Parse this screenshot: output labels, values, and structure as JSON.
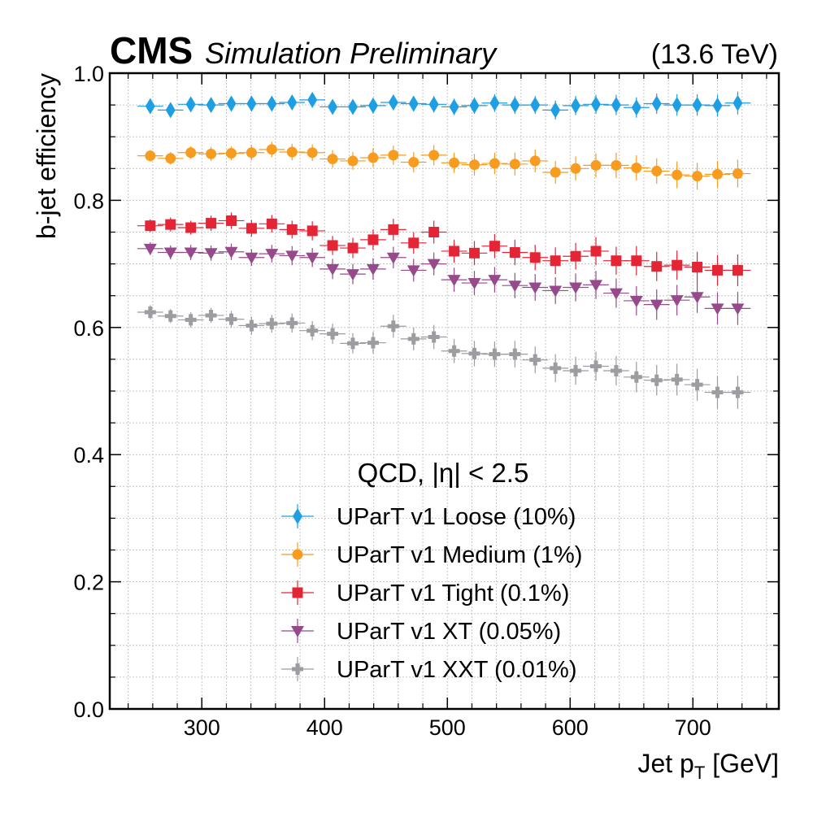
{
  "header": {
    "experiment": "CMS",
    "status": "Simulation Preliminary",
    "energy": "(13.6 TeV)"
  },
  "chart_data": {
    "type": "scatter",
    "xlabel_main": "Jet p",
    "xlabel_sub": "T",
    "xlabel_unit": " [GeV]",
    "ylabel": "b-jet efficiency",
    "xlim": [
      225,
      770
    ],
    "ylim": [
      0,
      1
    ],
    "x_ticks": [
      300,
      400,
      500,
      600,
      700
    ],
    "x_tick_labels": [
      "300",
      "400",
      "500",
      "600",
      "700"
    ],
    "y_ticks": [
      0,
      0.2,
      0.4,
      0.6,
      0.8,
      1.0
    ],
    "y_tick_labels": [
      "0.0",
      "0.2",
      "0.4",
      "0.6",
      "0.8",
      "1.0"
    ],
    "grid": true,
    "legend_title": "QCD, |η| < 2.5",
    "legend_position": "bottom-center",
    "bin_halfwidth": 10.5,
    "x": [
      258,
      274.5,
      291,
      307.5,
      324,
      340.5,
      357,
      373.5,
      390,
      406.5,
      423,
      439.5,
      456,
      472.5,
      489,
      505.5,
      522,
      538.5,
      555,
      571.5,
      588,
      604.5,
      621,
      637.5,
      654,
      670.5,
      687,
      703.5,
      720,
      736.5
    ],
    "series": [
      {
        "name": "UParT v1 Loose (10%)",
        "color": "#1e9fe3",
        "marker": "diamond",
        "values": [
          0.948,
          0.942,
          0.951,
          0.95,
          0.952,
          0.952,
          0.952,
          0.954,
          0.958,
          0.947,
          0.947,
          0.949,
          0.954,
          0.952,
          0.951,
          0.947,
          0.949,
          0.953,
          0.95,
          0.95,
          0.942,
          0.949,
          0.951,
          0.95,
          0.946,
          0.952,
          0.95,
          0.95,
          0.949,
          0.953
        ],
        "yerr": [
          0.007,
          0.008,
          0.008,
          0.008,
          0.009,
          0.009,
          0.009,
          0.01,
          0.011,
          0.011,
          0.011,
          0.012,
          0.012,
          0.012,
          0.013,
          0.013,
          0.013,
          0.014,
          0.014,
          0.014,
          0.015,
          0.015,
          0.015,
          0.016,
          0.016,
          0.016,
          0.017,
          0.017,
          0.017,
          0.018
        ]
      },
      {
        "name": "UParT v1 Medium (1%)",
        "color": "#f89c20",
        "marker": "circle",
        "values": [
          0.87,
          0.866,
          0.875,
          0.873,
          0.874,
          0.875,
          0.88,
          0.876,
          0.875,
          0.865,
          0.862,
          0.867,
          0.871,
          0.86,
          0.871,
          0.859,
          0.856,
          0.858,
          0.857,
          0.862,
          0.844,
          0.85,
          0.855,
          0.855,
          0.851,
          0.846,
          0.84,
          0.838,
          0.841,
          0.842
        ],
        "yerr": [
          0.009,
          0.01,
          0.01,
          0.011,
          0.011,
          0.012,
          0.012,
          0.013,
          0.013,
          0.014,
          0.014,
          0.015,
          0.015,
          0.016,
          0.016,
          0.016,
          0.017,
          0.017,
          0.018,
          0.018,
          0.018,
          0.019,
          0.019,
          0.02,
          0.02,
          0.02,
          0.021,
          0.021,
          0.021,
          0.022
        ]
      },
      {
        "name": "UParT v1 Tight (0.1%)",
        "color": "#e42536",
        "marker": "square",
        "values": [
          0.76,
          0.762,
          0.757,
          0.764,
          0.768,
          0.756,
          0.763,
          0.754,
          0.752,
          0.729,
          0.725,
          0.738,
          0.754,
          0.733,
          0.75,
          0.72,
          0.717,
          0.728,
          0.718,
          0.71,
          0.705,
          0.712,
          0.72,
          0.705,
          0.705,
          0.696,
          0.698,
          0.695,
          0.69,
          0.69
        ],
        "yerr": [
          0.01,
          0.011,
          0.011,
          0.012,
          0.013,
          0.013,
          0.014,
          0.014,
          0.015,
          0.015,
          0.016,
          0.016,
          0.017,
          0.017,
          0.018,
          0.018,
          0.019,
          0.019,
          0.02,
          0.02,
          0.021,
          0.021,
          0.022,
          0.022,
          0.023,
          0.023,
          0.023,
          0.024,
          0.024,
          0.025
        ]
      },
      {
        "name": "UParT v1 XT (0.05%)",
        "color": "#964a8b",
        "marker": "triangle-down",
        "values": [
          0.724,
          0.718,
          0.718,
          0.717,
          0.719,
          0.71,
          0.716,
          0.713,
          0.71,
          0.692,
          0.684,
          0.692,
          0.71,
          0.69,
          0.7,
          0.675,
          0.67,
          0.675,
          0.666,
          0.663,
          0.658,
          0.663,
          0.667,
          0.654,
          0.642,
          0.636,
          0.643,
          0.648,
          0.63,
          0.63
        ],
        "yerr": [
          0.01,
          0.011,
          0.012,
          0.012,
          0.013,
          0.013,
          0.014,
          0.015,
          0.015,
          0.016,
          0.016,
          0.017,
          0.017,
          0.018,
          0.018,
          0.019,
          0.019,
          0.02,
          0.02,
          0.021,
          0.021,
          0.022,
          0.022,
          0.023,
          0.023,
          0.024,
          0.024,
          0.025,
          0.025,
          0.026
        ]
      },
      {
        "name": "UParT v1 XXT (0.01%)",
        "color": "#9c9ca1",
        "marker": "plus",
        "values": [
          0.624,
          0.618,
          0.612,
          0.619,
          0.613,
          0.603,
          0.606,
          0.607,
          0.595,
          0.59,
          0.575,
          0.576,
          0.602,
          0.582,
          0.585,
          0.563,
          0.559,
          0.558,
          0.558,
          0.549,
          0.536,
          0.532,
          0.539,
          0.532,
          0.522,
          0.517,
          0.518,
          0.51,
          0.498,
          0.498
        ],
        "yerr": [
          0.011,
          0.011,
          0.012,
          0.012,
          0.013,
          0.014,
          0.014,
          0.015,
          0.015,
          0.016,
          0.016,
          0.017,
          0.018,
          0.018,
          0.019,
          0.019,
          0.02,
          0.02,
          0.021,
          0.021,
          0.022,
          0.022,
          0.023,
          0.023,
          0.024,
          0.024,
          0.025,
          0.025,
          0.026,
          0.026
        ]
      }
    ]
  }
}
